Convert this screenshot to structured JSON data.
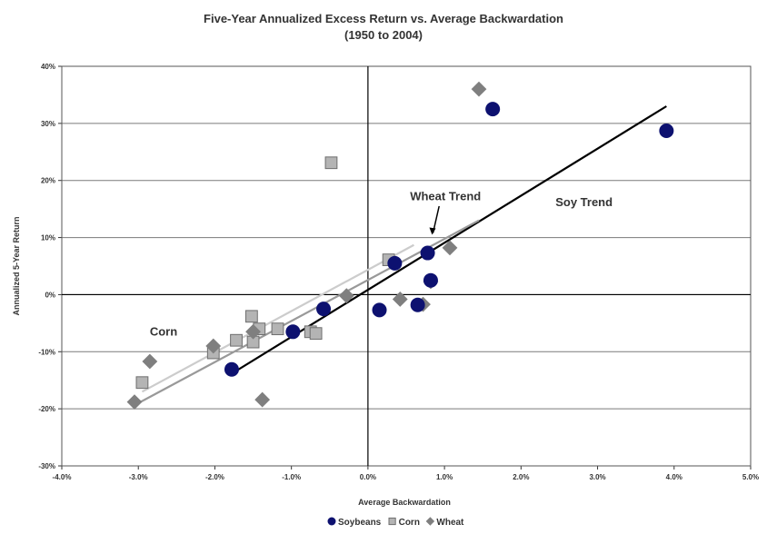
{
  "chart_data": {
    "type": "scatter",
    "title": "Five-Year Annualized Excess Return vs. Average Backwardation",
    "subtitle": "(1950 to 2004)",
    "xlabel": "Average Backwardation",
    "ylabel": "Annualized 5-Year Return",
    "xlim": [
      -0.04,
      0.05
    ],
    "ylim": [
      -0.3,
      0.4
    ],
    "x_ticks": [
      "-4.0%",
      "-3.0%",
      "-2.0%",
      "-1.0%",
      "0.0%",
      "1.0%",
      "2.0%",
      "3.0%",
      "4.0%",
      "5.0%"
    ],
    "y_ticks": [
      "-30%",
      "-20%",
      "-10%",
      "0%",
      "10%",
      "20%",
      "30%",
      "40%"
    ],
    "grid": "horizontal",
    "legend_position": "bottom",
    "series": [
      {
        "name": "Soybeans",
        "marker": "circle",
        "color": "#0d1170",
        "points": [
          [
            0.039,
            0.287
          ],
          [
            0.0163,
            0.325
          ],
          [
            0.0078,
            0.073
          ],
          [
            0.0035,
            0.055
          ],
          [
            0.0082,
            0.025
          ],
          [
            0.0065,
            -0.018
          ],
          [
            0.0015,
            -0.027
          ],
          [
            -0.0058,
            -0.025
          ],
          [
            -0.0098,
            -0.065
          ],
          [
            -0.0178,
            -0.131
          ]
        ]
      },
      {
        "name": "Corn",
        "marker": "square",
        "color": "#b4b4b4",
        "points": [
          [
            -0.0048,
            0.231
          ],
          [
            0.0027,
            0.061
          ],
          [
            -0.0152,
            -0.038
          ],
          [
            -0.0142,
            -0.06
          ],
          [
            -0.0118,
            -0.06
          ],
          [
            -0.0172,
            -0.08
          ],
          [
            -0.015,
            -0.083
          ],
          [
            -0.0075,
            -0.065
          ],
          [
            -0.0068,
            -0.068
          ],
          [
            -0.0202,
            -0.102
          ],
          [
            -0.0295,
            -0.154
          ]
        ]
      },
      {
        "name": "Wheat",
        "marker": "diamond",
        "color": "#7f7f7f",
        "points": [
          [
            0.0145,
            0.36
          ],
          [
            0.0107,
            0.082
          ],
          [
            0.0082,
            0.023
          ],
          [
            0.0042,
            -0.008
          ],
          [
            0.0072,
            -0.017
          ],
          [
            -0.0028,
            -0.002
          ],
          [
            -0.015,
            -0.065
          ],
          [
            -0.0202,
            -0.09
          ],
          [
            -0.0285,
            -0.117
          ],
          [
            -0.0305,
            -0.188
          ],
          [
            -0.0138,
            -0.184
          ]
        ]
      }
    ],
    "trend_lines": [
      {
        "name": "Soy Trend",
        "color": "#000000",
        "x": [
          -0.018,
          0.039
        ],
        "y": [
          -0.14,
          0.33
        ]
      },
      {
        "name": "Wheat Trend",
        "color": "#999999",
        "x": [
          -0.03,
          0.0145
        ],
        "y": [
          -0.19,
          0.13
        ]
      },
      {
        "name": "Corn",
        "color": "#cccccc",
        "x": [
          -0.0295,
          0.006
        ],
        "y": [
          -0.17,
          0.087
        ]
      }
    ],
    "annotations": [
      {
        "text": "Wheat Trend",
        "x": 0.0055,
        "y": 0.165
      },
      {
        "text": "Soy Trend",
        "x": 0.0245,
        "y": 0.155
      },
      {
        "text": "Corn",
        "x": -0.0285,
        "y": -0.072
      }
    ]
  }
}
